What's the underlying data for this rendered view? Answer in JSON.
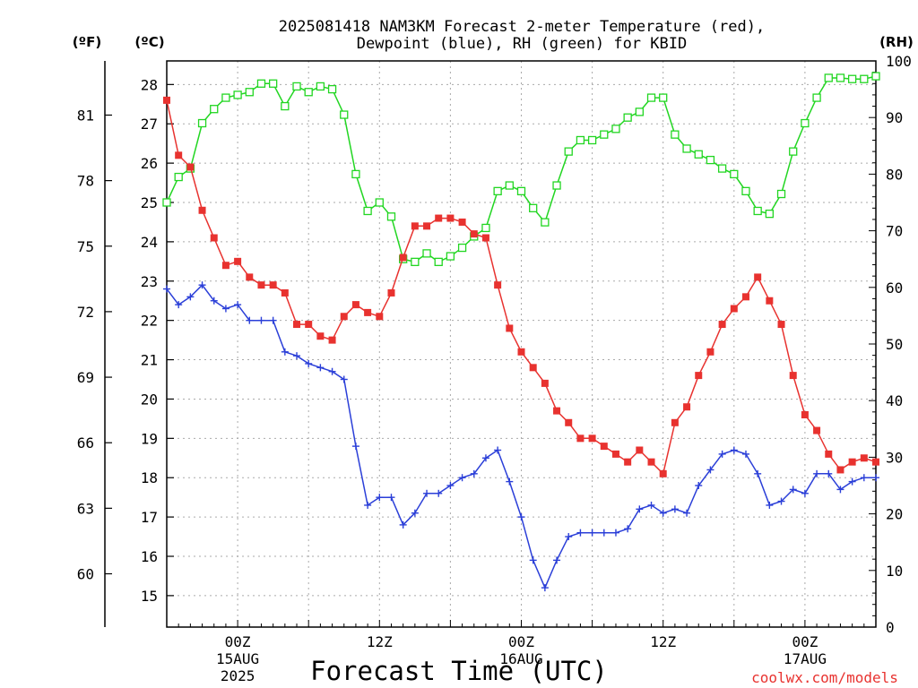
{
  "title_line1": "2025081418 NAM3KM Forecast 2-meter Temperature (red),",
  "title_line2": "Dewpoint (blue), RH (green) for KBID",
  "units": {
    "fahrenheit": "(ºF)",
    "celsius": "(ºC)",
    "rh": "(RH)"
  },
  "xlabel": "Forecast Time (UTC)",
  "credit": "coolwx.com/models",
  "colors": {
    "temperature": "#e8322f",
    "dewpoint": "#2b3fd8",
    "rh": "#22d622",
    "grid": "#aaaaaa",
    "axis": "#000000"
  },
  "x_ticks": [
    {
      "hour": 6,
      "line1": "00Z",
      "line2": "15AUG",
      "line3": "2025"
    },
    {
      "hour": 18,
      "line1": "12Z",
      "line2": "",
      "line3": ""
    },
    {
      "hour": 30,
      "line1": "00Z",
      "line2": "16AUG",
      "line3": ""
    },
    {
      "hour": 42,
      "line1": "12Z",
      "line2": "",
      "line3": ""
    },
    {
      "hour": 54,
      "line1": "00Z",
      "line2": "17AUG",
      "line3": ""
    }
  ],
  "celsius_ticks": [
    "15",
    "16",
    "17",
    "18",
    "19",
    "20",
    "21",
    "22",
    "23",
    "24",
    "25",
    "26",
    "27",
    "28"
  ],
  "fahrenheit_ticks": [
    "60",
    "63",
    "66",
    "69",
    "72",
    "75",
    "78",
    "81"
  ],
  "rh_ticks": [
    "0",
    "10",
    "20",
    "30",
    "40",
    "50",
    "60",
    "70",
    "80",
    "90",
    "100"
  ],
  "chart_data": {
    "type": "line",
    "x_unit": "forecast hours from 2025-08-14 18Z (hourly)",
    "xlim": [
      0,
      60
    ],
    "celsius_lim": [
      14.2,
      28.6
    ],
    "rh_lim": [
      0,
      100
    ],
    "series": [
      {
        "name": "Temperature",
        "axis": "celsius",
        "values": [
          27.6,
          26.2,
          25.9,
          24.8,
          24.1,
          23.4,
          23.5,
          23.1,
          22.9,
          22.9,
          22.7,
          21.9,
          21.9,
          21.6,
          21.5,
          22.1,
          22.4,
          22.2,
          22.1,
          22.7,
          23.6,
          24.4,
          24.4,
          24.6,
          24.6,
          24.5,
          24.2,
          24.1,
          22.9,
          21.8,
          21.2,
          20.8,
          20.4,
          19.7,
          19.4,
          19.0,
          19.0,
          18.8,
          18.6,
          18.4,
          18.7,
          18.4,
          18.1,
          19.4,
          19.8,
          20.6,
          21.2,
          21.9,
          22.3,
          22.6,
          23.1,
          22.5,
          21.9,
          20.6,
          19.6,
          19.2,
          18.6,
          18.2,
          18.4,
          18.5,
          18.4
        ]
      },
      {
        "name": "Dewpoint",
        "axis": "celsius",
        "values": [
          22.8,
          22.4,
          22.6,
          22.9,
          22.5,
          22.3,
          22.4,
          22.0,
          22.0,
          22.0,
          21.2,
          21.1,
          20.9,
          20.8,
          20.7,
          20.5,
          18.8,
          17.3,
          17.5,
          17.5,
          16.8,
          17.1,
          17.6,
          17.6,
          17.8,
          18.0,
          18.1,
          18.5,
          18.7,
          17.9,
          17.0,
          15.9,
          15.2,
          15.9,
          16.5,
          16.6,
          16.6,
          16.6,
          16.6,
          16.7,
          17.2,
          17.3,
          17.1,
          17.2,
          17.1,
          17.8,
          18.2,
          18.6,
          18.7,
          18.6,
          18.1,
          17.3,
          17.4,
          17.7,
          17.6,
          18.1,
          18.1,
          17.7,
          17.9,
          18.0,
          18.0
        ]
      },
      {
        "name": "RH",
        "axis": "rh",
        "values": [
          75,
          79.5,
          81,
          89,
          91.5,
          93.5,
          94,
          94.5,
          96,
          96,
          92,
          95.5,
          94.5,
          95.5,
          95,
          90.5,
          80,
          73.5,
          75,
          72.5,
          65,
          64.5,
          66,
          64.5,
          65.5,
          67,
          69,
          70.5,
          77,
          78,
          77,
          74,
          71.5,
          78,
          84,
          86,
          86,
          87,
          88,
          90,
          91,
          93.5,
          93.5,
          87,
          84.5,
          83.5,
          82.5,
          81,
          80,
          77,
          73.5,
          73,
          76.5,
          84,
          89,
          93.5,
          97,
          97,
          96.8,
          96.8,
          97.3
        ]
      }
    ]
  }
}
